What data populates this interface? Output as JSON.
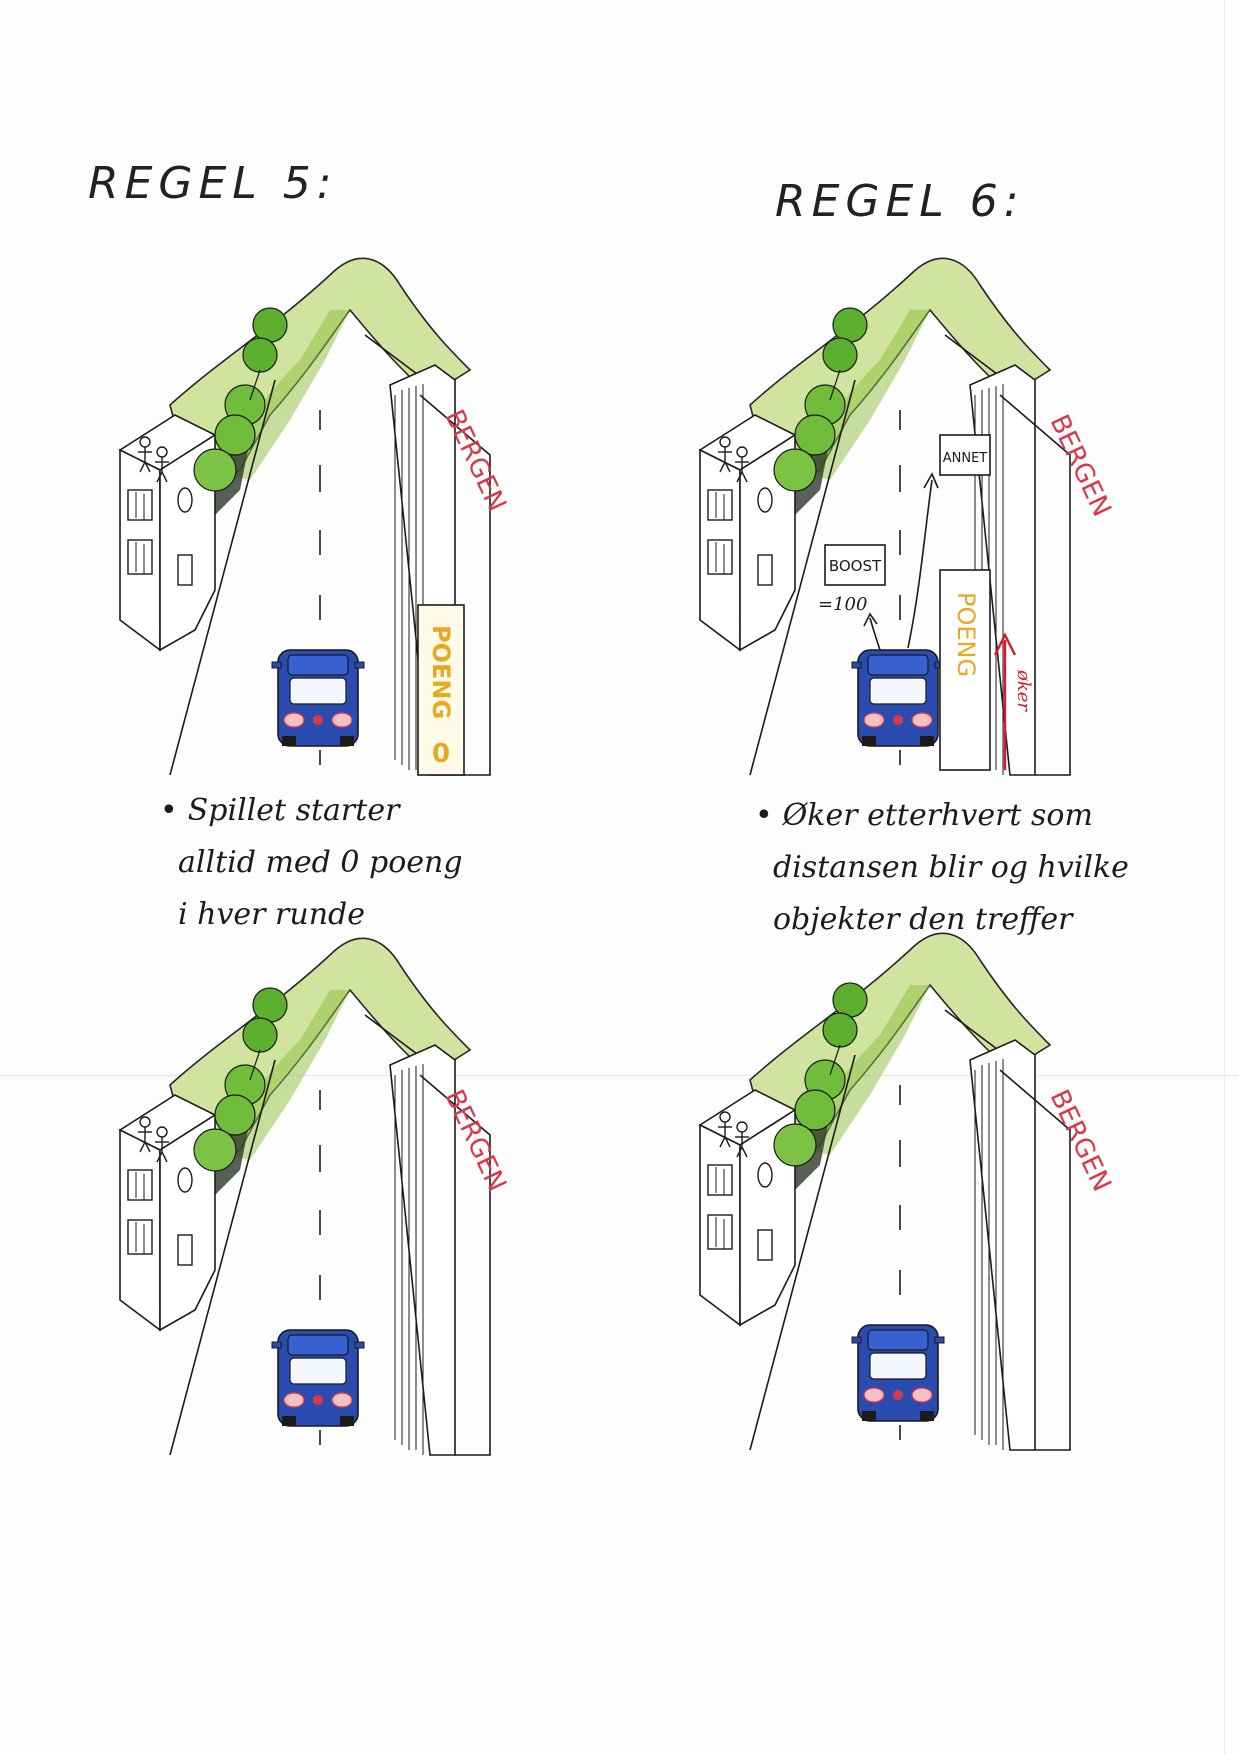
{
  "headings": {
    "rule5": "REGEL 5:",
    "rule6": "REGEL 6:"
  },
  "captions": {
    "rule5": [
      "Spillet starter",
      "alltid med 0 poeng",
      "i hver runde"
    ],
    "rule6": [
      "Øker etterhvert som",
      "distansen blir og hvilke",
      "objekter den treffer"
    ]
  },
  "panels": {
    "sign_text": "BERGEN",
    "rule5_score_sign": {
      "label": "POENG",
      "value": "0"
    },
    "rule6_boost": {
      "label": "BOOST",
      "value": "=100"
    },
    "rule6_other": {
      "label": "ANNET"
    },
    "rule6_score_sign": {
      "label": "POENG"
    },
    "rule6_increase": {
      "label": "øker"
    }
  },
  "colors": {
    "car": "#2a4bb0",
    "grass": "#b8d66a",
    "tree": "#5cae2e",
    "sign_red": "#d8394a",
    "score_yellow": "#e8a820",
    "arrow_red": "#d61c2a",
    "ink": "#1b1b1b"
  },
  "bullet": "•"
}
